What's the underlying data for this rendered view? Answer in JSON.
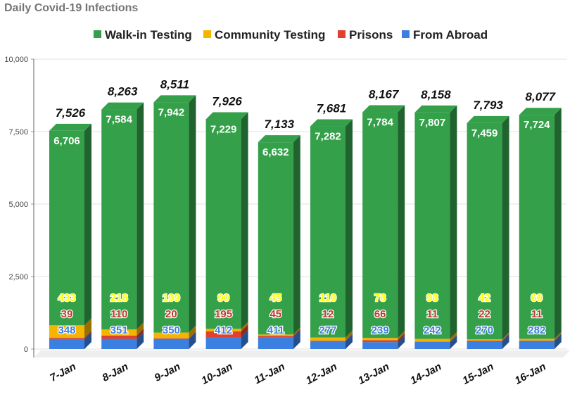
{
  "chart_data": {
    "type": "bar",
    "stacked": true,
    "title": "Daily Covid-19 Infections",
    "categories": [
      "7-Jan",
      "8-Jan",
      "9-Jan",
      "10-Jan",
      "11-Jan",
      "12-Jan",
      "13-Jan",
      "14-Jan",
      "15-Jan",
      "16-Jan"
    ],
    "series": [
      {
        "name": "From Abroad",
        "color": "#3b7fe0",
        "values": [
          348,
          351,
          350,
          412,
          411,
          277,
          239,
          242,
          270,
          282
        ]
      },
      {
        "name": "Prisons",
        "color": "#e0402c",
        "values": [
          39,
          110,
          20,
          195,
          45,
          12,
          66,
          11,
          22,
          11
        ]
      },
      {
        "name": "Community Testing",
        "color": "#f4b400",
        "values": [
          433,
          218,
          199,
          90,
          45,
          110,
          78,
          98,
          42,
          60
        ]
      },
      {
        "name": "Walk-in Testing",
        "color": "#34a04a",
        "values": [
          6706,
          7584,
          7942,
          7229,
          6632,
          7282,
          7784,
          7807,
          7459,
          7724
        ]
      }
    ],
    "legend_order": [
      "Walk-in Testing",
      "Community Testing",
      "Prisons",
      "From Abroad"
    ],
    "totals": [
      7526,
      8263,
      8511,
      7926,
      7133,
      7681,
      8167,
      8158,
      7793,
      8077
    ],
    "total_labels": [
      "7,526",
      "8,263",
      "8,511",
      "7,926",
      "7,133",
      "7,681",
      "8,167",
      "8,158",
      "7,793",
      "8,077"
    ],
    "value_labels": {
      "Walk-in Testing": [
        "6,706",
        "7,584",
        "7,942",
        "7,229",
        "6,632",
        "7,282",
        "7,784",
        "7,807",
        "7,459",
        "7,724"
      ],
      "Community Testing": [
        "433",
        "218",
        "199",
        "90",
        "45",
        "110",
        "78",
        "98",
        "42",
        "60"
      ],
      "Prisons": [
        "39",
        "110",
        "20",
        "195",
        "45",
        "12",
        "66",
        "11",
        "22",
        "11"
      ],
      "From Abroad": [
        "348",
        "351",
        "350",
        "412",
        "411",
        "277",
        "239",
        "242",
        "270",
        "282"
      ]
    },
    "value_label_colors": {
      "Walk-in Testing": "#ffffff",
      "Community Testing": "#ffff00",
      "Prisons": "#c0392b",
      "From Abroad": "#3b7fe0"
    },
    "ylim": [
      0,
      10000
    ],
    "yticks": [
      0,
      2500,
      5000,
      7500,
      10000
    ],
    "ytick_labels": [
      "0",
      "2,500",
      "5,000",
      "7,500",
      "10,000"
    ],
    "grid": true,
    "legend_position": "top"
  }
}
